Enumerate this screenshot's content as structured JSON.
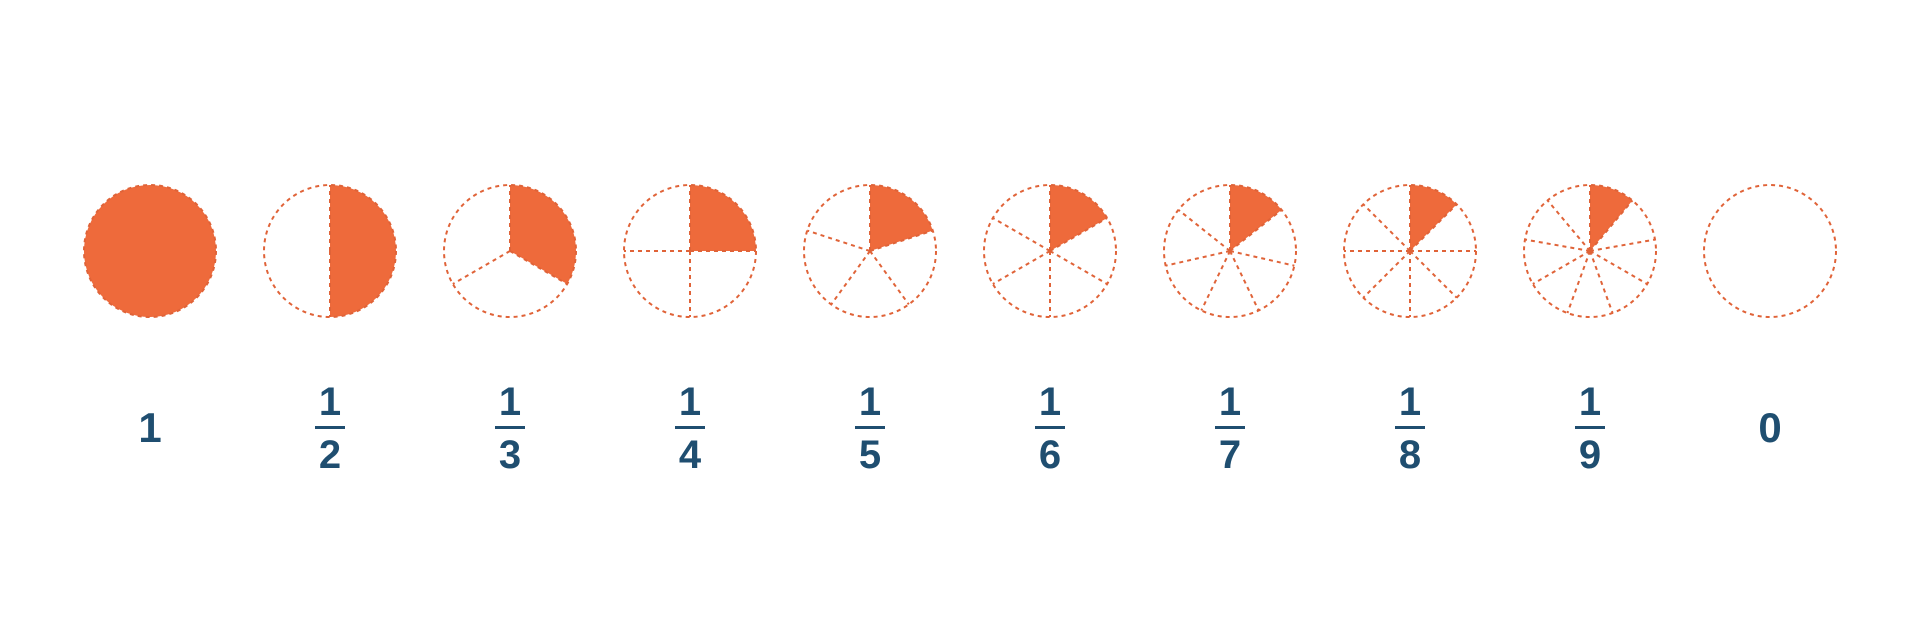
{
  "background_color": "#ffffff",
  "fill_color": "#ee6a3b",
  "stroke_color": "#e06338",
  "text_color": "#1f4e70",
  "circle_radius": 66,
  "stroke_width": 2,
  "dash": "4 4",
  "label_fontsize": 40,
  "fraction_bar_width": 30,
  "items": [
    {
      "whole_label": "1",
      "segments": 1,
      "filled": 1
    },
    {
      "numerator": "1",
      "denominator": "2",
      "segments": 2,
      "filled": 1
    },
    {
      "numerator": "1",
      "denominator": "3",
      "segments": 3,
      "filled": 1
    },
    {
      "numerator": "1",
      "denominator": "4",
      "segments": 4,
      "filled": 1
    },
    {
      "numerator": "1",
      "denominator": "5",
      "segments": 5,
      "filled": 1
    },
    {
      "numerator": "1",
      "denominator": "6",
      "segments": 6,
      "filled": 1
    },
    {
      "numerator": "1",
      "denominator": "7",
      "segments": 7,
      "filled": 1
    },
    {
      "numerator": "1",
      "denominator": "8",
      "segments": 8,
      "filled": 1
    },
    {
      "numerator": "1",
      "denominator": "9",
      "segments": 9,
      "filled": 1
    },
    {
      "whole_label": "0",
      "segments": 1,
      "filled": 0
    }
  ]
}
